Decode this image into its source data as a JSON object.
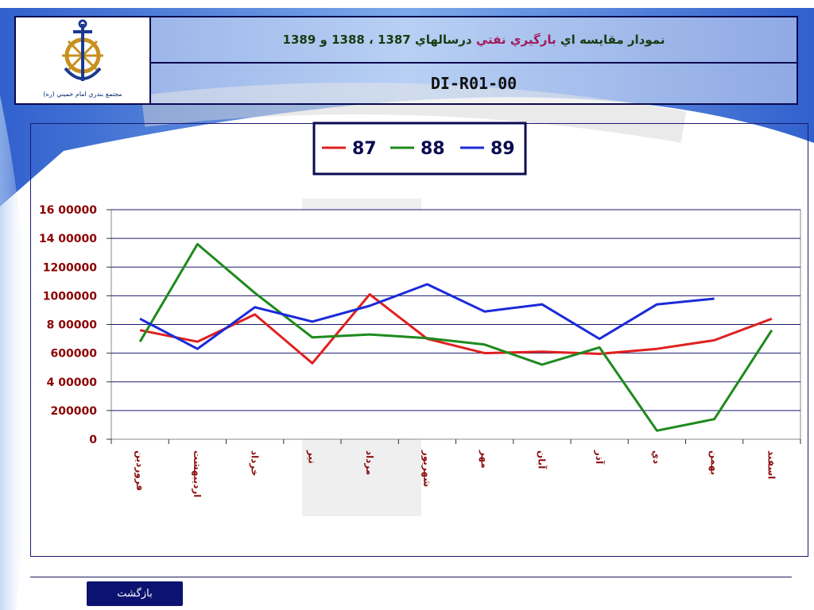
{
  "header": {
    "title_part1": "نمودار مقايسه اي",
    "title_highlight": "بارگيري نفتي",
    "title_part2": "درسالهاي 1387 ، 1388 و 1389",
    "code": "DI-R01-00",
    "logo_caption": "مجتمع بندري امام خميني (ره)"
  },
  "footer": {
    "back_label": "بازگشت"
  },
  "colors": {
    "series_87": "#e02020",
    "series_88": "#1e8a1e",
    "series_89": "#1a2ad8",
    "axis_labels": "#8b0000",
    "tick_labels": "#8b1010",
    "frame": "#0a0a50"
  },
  "chart_data": {
    "type": "line",
    "title": "",
    "xlabel": "",
    "ylabel": "",
    "ylim": [
      0,
      1600000
    ],
    "y_tick_labels": [
      "0",
      "200000",
      "4 00000",
      "600000",
      "8 00000",
      "1000000",
      "1200000",
      "14 00000",
      "16 00000"
    ],
    "y_tick_values": [
      0,
      200000,
      400000,
      600000,
      800000,
      1000000,
      1200000,
      1400000,
      1600000
    ],
    "grid": true,
    "legend_position": "top-center",
    "categories": [
      "فروردين",
      "ارديبهشت",
      "خرداد",
      "تير",
      "مرداد",
      "شهريور",
      "مهر",
      "آبان",
      "آذر",
      "دي",
      "بهمن",
      "اسفند"
    ],
    "series": [
      {
        "name": "87",
        "values": [
          760000,
          680000,
          870000,
          530000,
          1010000,
          700000,
          600000,
          610000,
          595000,
          630000,
          690000,
          840000
        ]
      },
      {
        "name": "88",
        "values": [
          680000,
          1360000,
          1020000,
          710000,
          730000,
          705000,
          660000,
          520000,
          640000,
          60000,
          140000,
          760000
        ]
      },
      {
        "name": "89",
        "values": [
          840000,
          630000,
          920000,
          820000,
          930000,
          1080000,
          890000,
          940000,
          700000,
          940000,
          980000,
          null
        ]
      }
    ]
  }
}
